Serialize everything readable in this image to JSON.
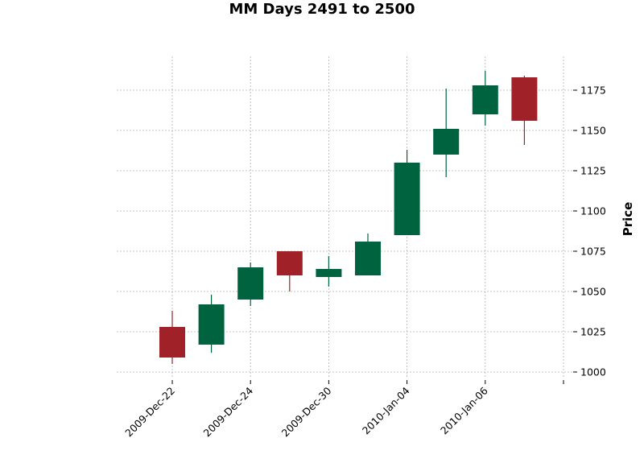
{
  "chart_data": {
    "type": "candlestick",
    "title": "MM Days 2491 to 2500",
    "xlabel": "",
    "ylabel": "Price",
    "ylim": [
      996,
      1196
    ],
    "y_ticks": [
      1000,
      1025,
      1050,
      1075,
      1100,
      1125,
      1150,
      1175
    ],
    "x_tick_labels": [
      "2009-Dec-22",
      "2009-Dec-24",
      "2009-Dec-30",
      "2010-Jan-04",
      "2010-Jan-06"
    ],
    "x_tick_indices": [
      0,
      2,
      4,
      6,
      8
    ],
    "grid": true,
    "colors": {
      "up": "#006340",
      "down": "#a02128",
      "grid": "#b0b0b0"
    },
    "candles": [
      {
        "open": 1028,
        "high": 1038,
        "low": 1005,
        "close": 1009
      },
      {
        "open": 1017,
        "high": 1048,
        "low": 1012,
        "close": 1042
      },
      {
        "open": 1045,
        "high": 1068,
        "low": 1041,
        "close": 1065
      },
      {
        "open": 1075,
        "high": 1075,
        "low": 1050,
        "close": 1060
      },
      {
        "open": 1059,
        "high": 1072,
        "low": 1053,
        "close": 1064
      },
      {
        "open": 1060,
        "high": 1086,
        "low": 1060,
        "close": 1081
      },
      {
        "open": 1085,
        "high": 1138,
        "low": 1085,
        "close": 1130
      },
      {
        "open": 1135,
        "high": 1176,
        "low": 1121,
        "close": 1151
      },
      {
        "open": 1160,
        "high": 1187,
        "low": 1153,
        "close": 1178
      },
      {
        "open": 1183,
        "high": 1184,
        "low": 1141,
        "close": 1156
      }
    ]
  }
}
